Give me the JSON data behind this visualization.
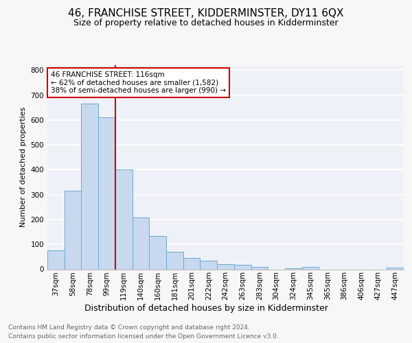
{
  "title": "46, FRANCHISE STREET, KIDDERMINSTER, DY11 6QX",
  "subtitle": "Size of property relative to detached houses in Kidderminster",
  "xlabel": "Distribution of detached houses by size in Kidderminster",
  "ylabel": "Number of detached properties",
  "categories": [
    "37sqm",
    "58sqm",
    "78sqm",
    "99sqm",
    "119sqm",
    "140sqm",
    "160sqm",
    "181sqm",
    "201sqm",
    "222sqm",
    "242sqm",
    "263sqm",
    "283sqm",
    "304sqm",
    "324sqm",
    "345sqm",
    "365sqm",
    "386sqm",
    "406sqm",
    "427sqm",
    "447sqm"
  ],
  "values": [
    75,
    315,
    665,
    610,
    400,
    207,
    135,
    70,
    45,
    35,
    20,
    18,
    10,
    0,
    5,
    10,
    0,
    0,
    0,
    0,
    6
  ],
  "bar_color": "#c8d8ee",
  "bar_edge_color": "#6aaad4",
  "annotation_text_line1": "46 FRANCHISE STREET: 116sqm",
  "annotation_text_line2": "← 62% of detached houses are smaller (1,582)",
  "annotation_text_line3": "38% of semi-detached houses are larger (990) →",
  "annotation_box_facecolor": "#ffffff",
  "annotation_box_edgecolor": "#cc0000",
  "vline_color": "#cc0000",
  "vline_x_index": 4,
  "ylim": [
    0,
    820
  ],
  "yticks": [
    0,
    100,
    200,
    300,
    400,
    500,
    600,
    700,
    800
  ],
  "plot_bg_color": "#eef2f8",
  "grid_color": "#ffffff",
  "fig_bg_color": "#f7f7f7",
  "title_fontsize": 11,
  "subtitle_fontsize": 9,
  "ylabel_fontsize": 8,
  "xlabel_fontsize": 9,
  "tick_fontsize": 7.5,
  "footer_line1": "Contains HM Land Registry data © Crown copyright and database right 2024.",
  "footer_line2": "Contains public sector information licensed under the Open Government Licence v3.0.",
  "footer_fontsize": 6.5,
  "footer_color": "#666666"
}
